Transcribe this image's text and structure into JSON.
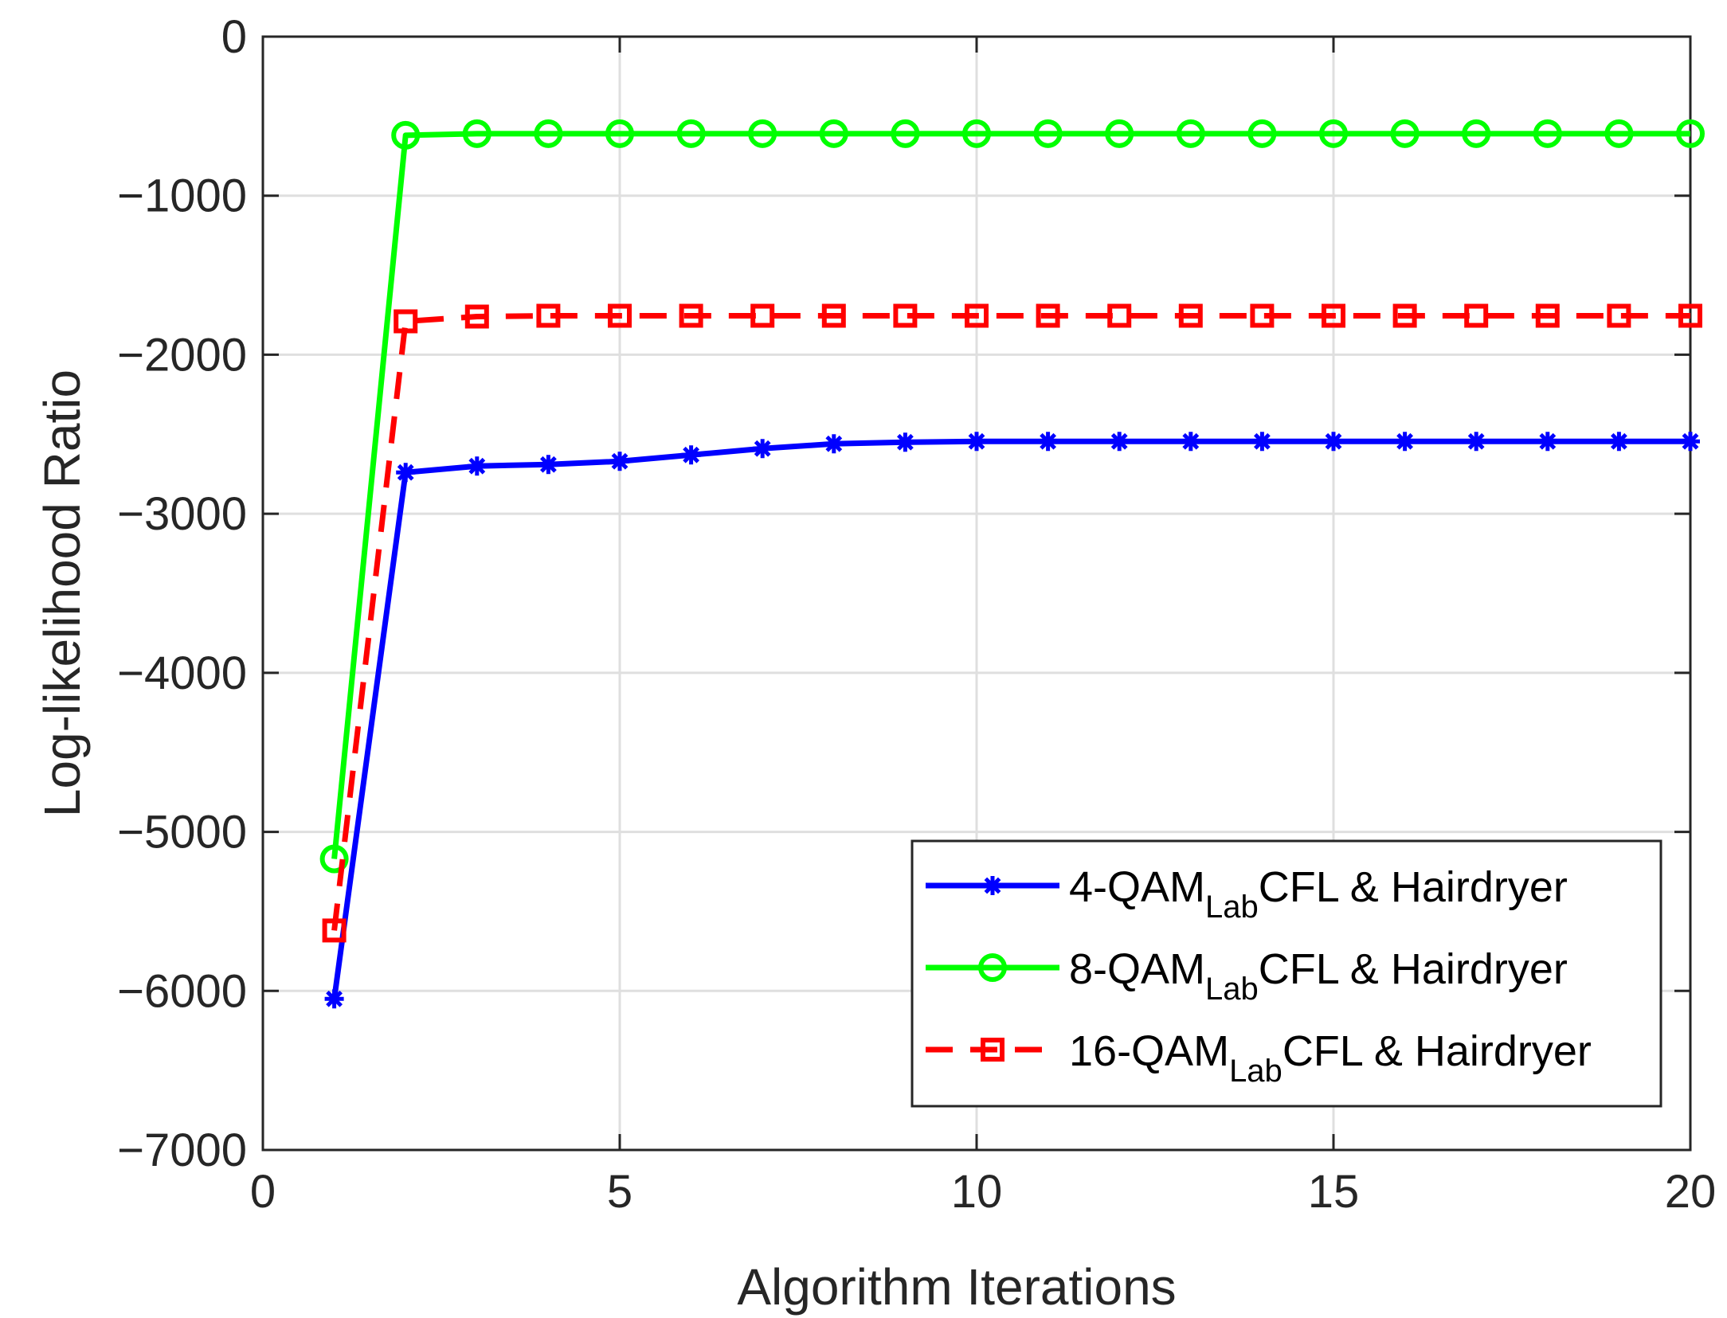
{
  "chart_data": {
    "type": "line",
    "title": "",
    "xlabel": "Algorithm Iterations",
    "ylabel": "Log-likelihood Ratio",
    "xlim": [
      0,
      20
    ],
    "ylim": [
      -7000,
      0
    ],
    "xticks": [
      0,
      5,
      10,
      15,
      20
    ],
    "yticks": [
      0,
      -1000,
      -2000,
      -3000,
      -4000,
      -5000,
      -6000,
      -7000
    ],
    "xtick_labels": [
      "0",
      "5",
      "10",
      "15",
      "20"
    ],
    "ytick_labels": [
      "0",
      "−1000",
      "−2000",
      "−3000",
      "−4000",
      "−5000",
      "−6000",
      "−7000"
    ],
    "grid": true,
    "legend_position": "bottom-right",
    "x": [
      1,
      2,
      3,
      4,
      5,
      6,
      7,
      8,
      9,
      10,
      11,
      12,
      13,
      14,
      15,
      16,
      17,
      18,
      19,
      20
    ],
    "series": [
      {
        "name": "4-QAM Lab CFL & Hairdryer",
        "label_main": "4-QAM",
        "label_sub": "Lab",
        "label_rest": "CFL & Hairdryer",
        "color": "#0000ff",
        "line_style": "solid",
        "marker": "asterisk",
        "values": [
          -6050,
          -2740,
          -2700,
          -2690,
          -2670,
          -2630,
          -2590,
          -2560,
          -2550,
          -2545,
          -2545,
          -2545,
          -2545,
          -2545,
          -2545,
          -2545,
          -2545,
          -2545,
          -2545,
          -2545
        ]
      },
      {
        "name": "8-QAM Lab CFL & Hairdryer",
        "label_main": "8-QAM",
        "label_sub": "Lab",
        "label_rest": "CFL & Hairdryer",
        "color": "#00ff00",
        "line_style": "solid",
        "marker": "circle",
        "values": [
          -5170,
          -620,
          -610,
          -610,
          -610,
          -610,
          -610,
          -610,
          -610,
          -610,
          -610,
          -610,
          -610,
          -610,
          -610,
          -610,
          -610,
          -610,
          -610,
          -610
        ]
      },
      {
        "name": "16-QAM Lab CFL & Hairdryer",
        "label_main": "16-QAM",
        "label_sub": "Lab",
        "label_rest": "CFL & Hairdryer",
        "color": "#ff0000",
        "line_style": "dashed",
        "marker": "square",
        "values": [
          -5620,
          -1790,
          -1760,
          -1755,
          -1755,
          -1755,
          -1755,
          -1755,
          -1755,
          -1755,
          -1755,
          -1755,
          -1755,
          -1755,
          -1755,
          -1755,
          -1755,
          -1755,
          -1755,
          -1755
        ]
      }
    ]
  }
}
